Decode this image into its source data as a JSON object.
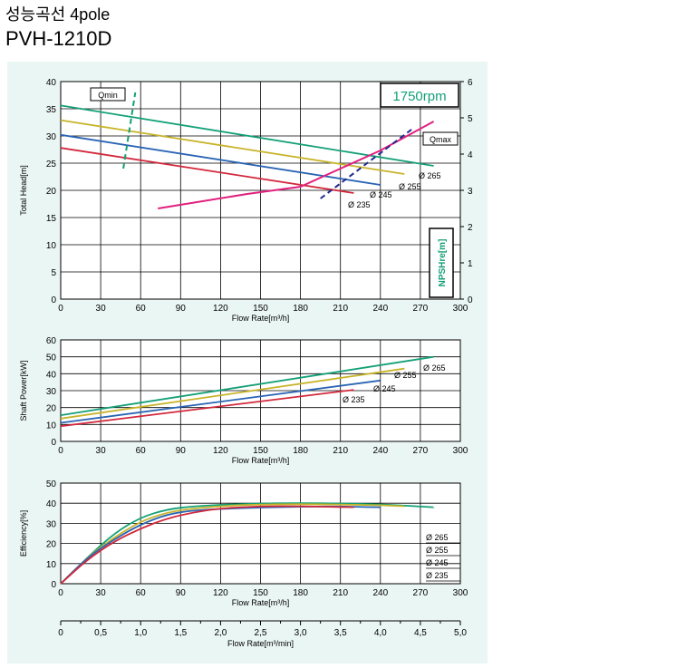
{
  "header": {
    "title": "성능곡선 4pole",
    "model": "PVH-1210D"
  },
  "colors": {
    "d265": "#14a077",
    "d255": "#c8b42a",
    "d245": "#2a64b4",
    "d235": "#d2283c",
    "npsh": "#e0207e",
    "panel": "#eaf6f3",
    "speed": "#14a077"
  },
  "chart_data": [
    {
      "type": "line",
      "id": "head",
      "speed_label": "1750rpm",
      "qmin_label": "Qmin",
      "qmax_label": "Qmax",
      "ylabel": "Total Head[m]",
      "y2label": "NPSHre[m]",
      "xlabel": "Flow Rate[m³/h]",
      "xlim": [
        0,
        300
      ],
      "ylim": [
        0,
        40
      ],
      "y2lim": [
        0,
        6
      ],
      "xticks": [
        "0",
        "30",
        "60",
        "90",
        "120",
        "150",
        "180",
        "210",
        "240",
        "270",
        "300"
      ],
      "yticks": [
        "0",
        "5",
        "10",
        "15",
        "20",
        "25",
        "30",
        "35",
        "40"
      ],
      "y2ticks": [
        "0",
        "1",
        "2",
        "3",
        "4",
        "5",
        "6"
      ],
      "series": [
        {
          "name": "Ø 265",
          "color_key": "d265",
          "x": [
            0,
            280
          ],
          "y": [
            35.6,
            24.5
          ]
        },
        {
          "name": "Ø 255",
          "color_key": "d255",
          "x": [
            0,
            258
          ],
          "y": [
            32.9,
            23.0
          ]
        },
        {
          "name": "Ø 245",
          "color_key": "d245",
          "x": [
            0,
            240
          ],
          "y": [
            30.2,
            21.0
          ]
        },
        {
          "name": "Ø 235",
          "color_key": "d235",
          "x": [
            0,
            220
          ],
          "y": [
            27.8,
            19.5
          ]
        }
      ],
      "npsh": {
        "x": [
          73,
          140,
          180,
          210,
          240,
          280
        ],
        "y": [
          2.5,
          2.9,
          3.1,
          3.6,
          4.1,
          4.9
        ]
      },
      "qmin_line": {
        "x": [
          47,
          56
        ],
        "y": [
          24,
          38
        ]
      },
      "qmax_line": {
        "x": [
          195,
          265
        ],
        "y": [
          18.5,
          31.5
        ]
      }
    },
    {
      "type": "line",
      "id": "power",
      "ylabel": "Shaft Power[kW]",
      "xlabel": "Flow Rate[m³/h]",
      "xlim": [
        0,
        300
      ],
      "ylim": [
        0,
        60
      ],
      "xticks": [
        "0",
        "30",
        "60",
        "90",
        "120",
        "150",
        "180",
        "210",
        "240",
        "270",
        "300"
      ],
      "yticks": [
        "0",
        "10",
        "20",
        "30",
        "40",
        "50",
        "60"
      ],
      "series": [
        {
          "name": "Ø 265",
          "color_key": "d265",
          "x": [
            0,
            280
          ],
          "y": [
            15.5,
            50
          ]
        },
        {
          "name": "Ø 255",
          "color_key": "d255",
          "x": [
            0,
            258
          ],
          "y": [
            13.5,
            43
          ]
        },
        {
          "name": "Ø 245",
          "color_key": "d245",
          "x": [
            0,
            240
          ],
          "y": [
            11,
            36
          ]
        },
        {
          "name": "Ø 235",
          "color_key": "d235",
          "x": [
            0,
            220
          ],
          "y": [
            9,
            30.5
          ]
        }
      ]
    },
    {
      "type": "line",
      "id": "efficiency",
      "ylabel": "Efficiency[%]",
      "xlabel": "Flow Rate[m³/h]",
      "xlim": [
        0,
        300
      ],
      "ylim": [
        0,
        50
      ],
      "xticks": [
        "0",
        "30",
        "60",
        "90",
        "120",
        "150",
        "180",
        "210",
        "240",
        "270",
        "300"
      ],
      "yticks": [
        "0",
        "10",
        "20",
        "30",
        "40",
        "50"
      ],
      "legend": [
        "Ø 265",
        "Ø 255",
        "Ø 245",
        "Ø 235"
      ],
      "series": [
        {
          "name": "Ø 265",
          "color_key": "d265",
          "x": [
            0,
            20,
            40,
            60,
            80,
            100,
            130,
            160,
            200,
            240,
            280
          ],
          "y": [
            0,
            13,
            25,
            33,
            37,
            38.5,
            39.5,
            40,
            40,
            39.5,
            38
          ]
        },
        {
          "name": "Ø 255",
          "color_key": "d255",
          "x": [
            0,
            20,
            40,
            60,
            80,
            100,
            130,
            160,
            200,
            240,
            258
          ],
          "y": [
            0,
            13,
            23,
            31,
            35.5,
            37.5,
            39,
            39.5,
            39.5,
            39,
            38.5
          ]
        },
        {
          "name": "Ø 245",
          "color_key": "d245",
          "x": [
            0,
            20,
            40,
            60,
            80,
            100,
            130,
            160,
            200,
            240
          ],
          "y": [
            0,
            13,
            22,
            29.5,
            34.5,
            36.5,
            37.5,
            38,
            38.5,
            38
          ]
        },
        {
          "name": "Ø 235",
          "color_key": "d235",
          "x": [
            0,
            20,
            40,
            60,
            80,
            100,
            120,
            150,
            180,
            220
          ],
          "y": [
            0,
            12,
            21,
            27.5,
            32.5,
            35.5,
            37.5,
            38.5,
            38.5,
            38
          ]
        }
      ]
    },
    {
      "type": "axis",
      "id": "flow_min",
      "xlabel": "Flow Rate[m³/min]",
      "xlim": [
        0,
        5
      ],
      "xticks": [
        "0",
        "0,5",
        "1,0",
        "1,5",
        "2,0",
        "2,5",
        "3,0",
        "3,5",
        "4,0",
        "4,5",
        "5,0"
      ]
    }
  ]
}
